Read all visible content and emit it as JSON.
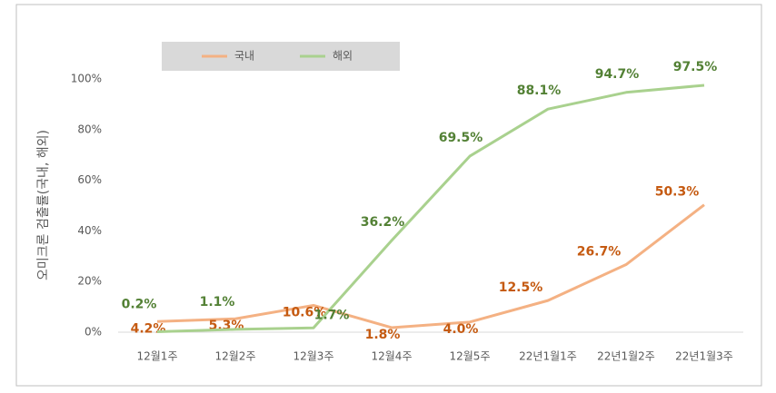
{
  "chart_data": {
    "type": "line",
    "y_axis_label": "오미크론 검출률(국내, 해외)",
    "categories": [
      "12월1주",
      "12월2주",
      "12월3주",
      "12월4주",
      "12월5주",
      "22년1월1주",
      "22년1월2주",
      "22년1월3주"
    ],
    "series": [
      {
        "name": "국내",
        "color": "#f4b183",
        "label_color": "#c55a11",
        "values": [
          4.2,
          5.3,
          10.6,
          1.8,
          4.0,
          12.5,
          26.7,
          50.3
        ],
        "value_labels": [
          "4.2%",
          "5.3%",
          "10.6%",
          "1.8%",
          "4.0%",
          "12.5%",
          "26.7%",
          "50.3%"
        ]
      },
      {
        "name": "해외",
        "color": "#a9d18e",
        "label_color": "#538135",
        "values": [
          0.2,
          1.1,
          1.7,
          36.2,
          69.5,
          88.1,
          94.7,
          97.5
        ],
        "value_labels": [
          "0.2%",
          "1.1%",
          "1.7%",
          "36.2%",
          "69.5%",
          "88.1%",
          "94.7%",
          "97.5%"
        ]
      }
    ],
    "ylim": [
      0,
      100
    ],
    "yticks": [
      {
        "value": 0,
        "label": "0%"
      },
      {
        "value": 20,
        "label": "20%"
      },
      {
        "value": 40,
        "label": "40%"
      },
      {
        "value": 60,
        "label": "60%"
      },
      {
        "value": 80,
        "label": "80%"
      },
      {
        "value": 100,
        "label": "100%"
      }
    ],
    "grid": false,
    "legend": "top"
  }
}
